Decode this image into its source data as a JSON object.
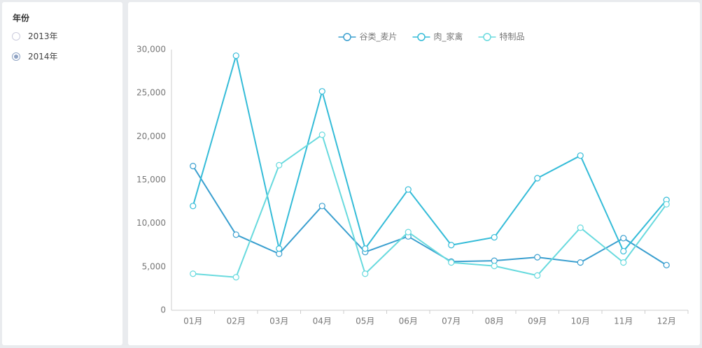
{
  "filter": {
    "title": "年份",
    "options": [
      "2013年",
      "2014年"
    ],
    "selected": 1
  },
  "chart_data": {
    "type": "line",
    "categories": [
      "01月",
      "02月",
      "03月",
      "04月",
      "05月",
      "06月",
      "07月",
      "08月",
      "09月",
      "10月",
      "11月",
      "12月"
    ],
    "series": [
      {
        "name": "谷类_麦片",
        "color": "#3a9fcf",
        "values": [
          16600,
          8700,
          6500,
          12000,
          6700,
          8500,
          5600,
          5700,
          6100,
          5500,
          8300,
          5200
        ]
      },
      {
        "name": "肉_家禽",
        "color": "#35bcd8",
        "values": [
          12000,
          29300,
          7100,
          25200,
          7100,
          13900,
          7500,
          8400,
          15200,
          17800,
          6800,
          12700
        ]
      },
      {
        "name": "特制品",
        "color": "#68dade",
        "values": [
          4200,
          3800,
          16700,
          20200,
          4200,
          9000,
          5500,
          5100,
          4000,
          9500,
          5500,
          12200
        ]
      }
    ],
    "ylim": [
      0,
      30000
    ],
    "yticks": [
      0,
      {
        "value": 5000,
        "label": "5,000"
      },
      {
        "value": 10000,
        "label": "10,000"
      },
      {
        "value": 15000,
        "label": "15,000"
      },
      {
        "value": 20000,
        "label": "20,000"
      },
      {
        "value": 25000,
        "label": "25,000"
      },
      {
        "value": 30000,
        "label": "30,000"
      }
    ],
    "grid": false,
    "legend": "top"
  }
}
